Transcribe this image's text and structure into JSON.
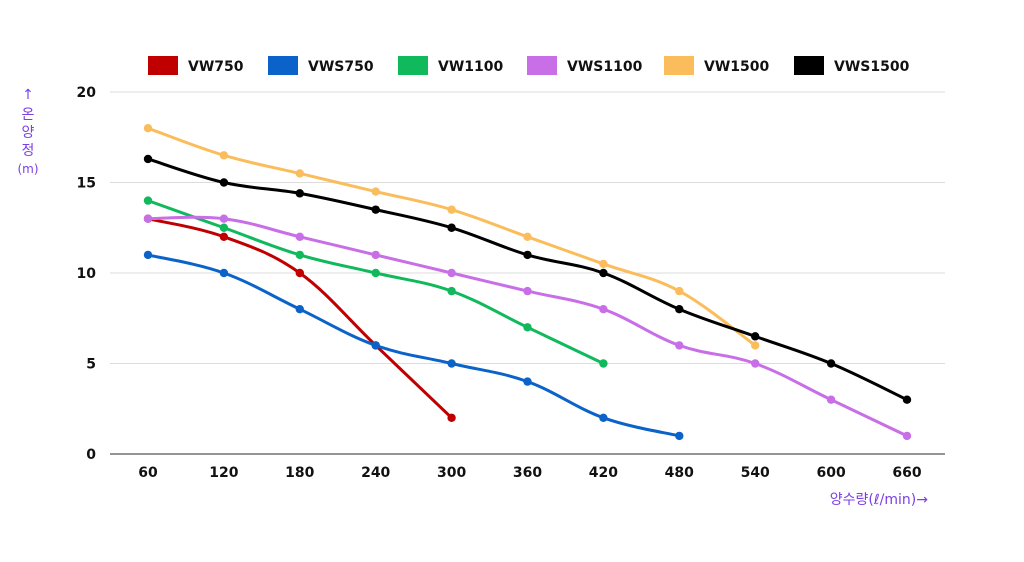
{
  "chart_data": {
    "type": "line",
    "title": "",
    "xlabel": "양수량(ℓ/min)→",
    "ylabel": "↑ 온양정 (m)",
    "ylabel_parts": [
      "↑",
      "온",
      "양",
      "정",
      "(m)"
    ],
    "xlabel_text": "양수량(ℓ/min)→",
    "categories": [
      "60",
      "120",
      "180",
      "240",
      "300",
      "360",
      "420",
      "480",
      "540",
      "600",
      "660"
    ],
    "x": [
      60,
      120,
      180,
      240,
      300,
      360,
      420,
      480,
      540,
      600,
      660
    ],
    "ylim": [
      0,
      20
    ],
    "yticks": [
      "0",
      "5",
      "10",
      "15",
      "20"
    ],
    "grid": true,
    "legend_position": "top",
    "series": [
      {
        "name": "VW750",
        "color": "#c00000",
        "x": [
          60,
          120,
          180,
          240,
          300
        ],
        "values": [
          13,
          12,
          10,
          6,
          2
        ]
      },
      {
        "name": "VWS750",
        "color": "#0b63c9",
        "x": [
          60,
          120,
          180,
          240,
          300,
          360,
          420,
          480
        ],
        "values": [
          11,
          10,
          8,
          6,
          5,
          4,
          2,
          1
        ]
      },
      {
        "name": "VW1100",
        "color": "#10b95b",
        "x": [
          60,
          120,
          180,
          240,
          300,
          360,
          420
        ],
        "values": [
          14,
          12.5,
          11,
          10,
          9,
          7,
          5
        ]
      },
      {
        "name": "VWS1100",
        "color": "#c86ee6",
        "x": [
          60,
          120,
          180,
          240,
          300,
          360,
          420,
          480,
          540,
          600,
          660
        ],
        "values": [
          13,
          13,
          12,
          11,
          10,
          9,
          8,
          6,
          5,
          3,
          1
        ]
      },
      {
        "name": "VW1500",
        "color": "#fbbd5c",
        "x": [
          60,
          120,
          180,
          240,
          300,
          360,
          420,
          480,
          540
        ],
        "values": [
          18,
          16.5,
          15.5,
          14.5,
          13.5,
          12,
          10.5,
          9,
          6
        ]
      },
      {
        "name": "VWS1500",
        "color": "#000000",
        "x": [
          60,
          120,
          180,
          240,
          300,
          360,
          420,
          480,
          540,
          600,
          660
        ],
        "values": [
          16.3,
          15,
          14.4,
          13.5,
          12.5,
          11,
          10,
          8,
          6.5,
          5,
          3
        ]
      }
    ]
  }
}
